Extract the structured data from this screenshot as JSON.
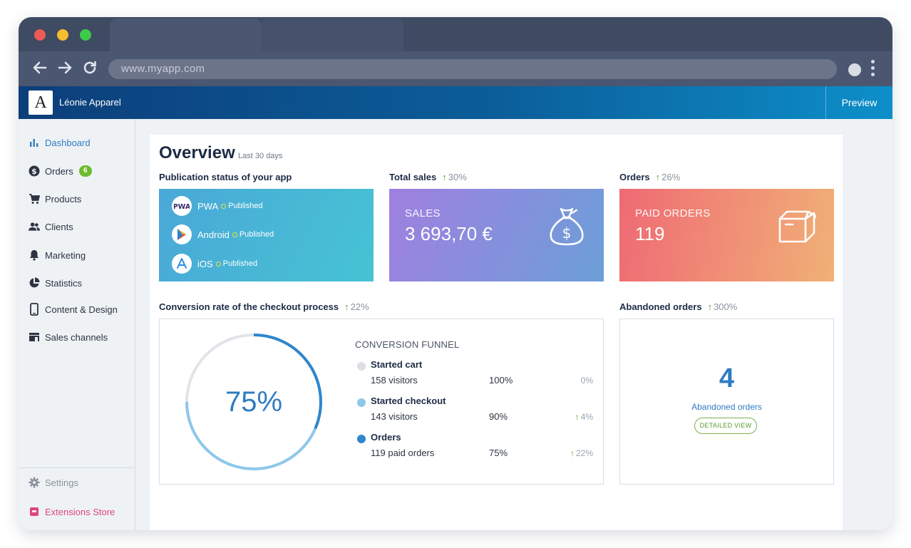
{
  "browser": {
    "url": "www.myapp.com"
  },
  "app": {
    "brand": "Léonie Apparel",
    "logo_letter": "A",
    "preview_label": "Preview"
  },
  "sidebar": {
    "items": [
      {
        "label": "Dashboard",
        "icon": "bar-chart-icon"
      },
      {
        "label": "Orders",
        "icon": "dollar-icon",
        "badge": "6"
      },
      {
        "label": "Products",
        "icon": "cart-icon"
      },
      {
        "label": "Clients",
        "icon": "people-icon"
      },
      {
        "label": "Marketing",
        "icon": "bell-icon"
      },
      {
        "label": "Statistics",
        "icon": "pie-chart-icon"
      },
      {
        "label": "Content & Design",
        "icon": "phone-icon"
      },
      {
        "label": "Sales channels",
        "icon": "store-icon"
      }
    ],
    "settings_label": "Settings",
    "store_label": "Extensions Store"
  },
  "overview": {
    "title": "Overview",
    "period": "Last 30 days"
  },
  "publication": {
    "heading": "Publication status of your app",
    "platforms": [
      {
        "name": "PWA",
        "status": "Published"
      },
      {
        "name": "Android",
        "status": "Published"
      },
      {
        "name": "iOS",
        "status": "Published"
      }
    ]
  },
  "total_sales": {
    "heading": "Total sales",
    "trend": "30%",
    "label": "SALES",
    "value": "3 693,70 €"
  },
  "orders": {
    "heading": "Orders",
    "trend": "26%",
    "label": "PAID ORDERS",
    "value": "119"
  },
  "conversion": {
    "heading": "Conversion rate of the checkout process",
    "trend": "22%",
    "rate_label": "75%",
    "rate": 0.75,
    "funnel_title": "CONVERSION FUNNEL",
    "steps": [
      {
        "name": "Started cart",
        "sub": "158 visitors",
        "pct": "100%",
        "trend": "0%",
        "up": false,
        "color": "#dcdfe3"
      },
      {
        "name": "Started checkout",
        "sub": "143 visitors",
        "pct": "90%",
        "trend": "4%",
        "up": true,
        "color": "#8ec8ea"
      },
      {
        "name": "Orders",
        "sub": "119 paid orders",
        "pct": "75%",
        "trend": "22%",
        "up": true,
        "color": "#2f86cc"
      }
    ]
  },
  "abandoned": {
    "heading": "Abandoned orders",
    "trend": "300%",
    "count": "4",
    "label": "Abandoned orders",
    "button": "DETAILED VIEW"
  },
  "colors": {
    "accent": "#2f7cc2",
    "trend_up": "#5aa830",
    "badge": "#6dbb2e"
  }
}
